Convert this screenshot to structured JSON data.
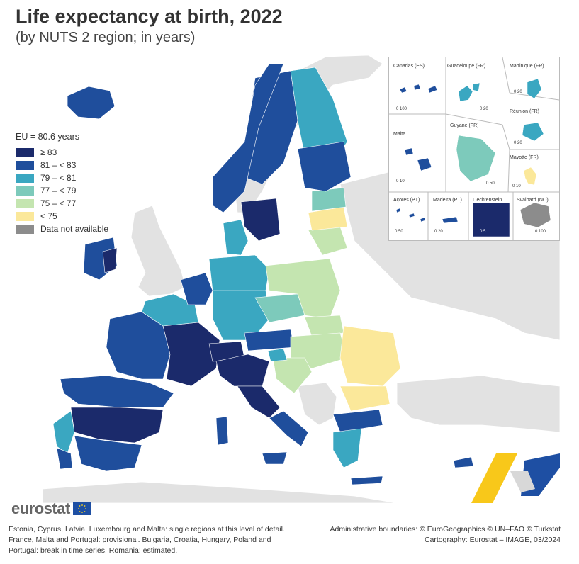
{
  "title": "Life expectancy at birth, 2022",
  "subtitle": "(by NUTS 2 region; in years)",
  "legend": {
    "title": "EU = 80.6 years",
    "items": [
      {
        "label": "≥ 83",
        "color": "#1b2a6b"
      },
      {
        "label": "81 – < 83",
        "color": "#1f4e9c"
      },
      {
        "label": "79 – < 81",
        "color": "#3aa7c1"
      },
      {
        "label": "77 – < 79",
        "color": "#7dcabb"
      },
      {
        "label": "75 – < 77",
        "color": "#c4e5b0"
      },
      {
        "label": "< 75",
        "color": "#fbe89a"
      },
      {
        "label": "Data not available",
        "color": "#8c8c8c"
      }
    ]
  },
  "insets": {
    "canarias": {
      "label": "Canarias (ES)",
      "scale": "0   100"
    },
    "guadeloupe": {
      "label": "Guadeloupe (FR)",
      "scale": "0  20"
    },
    "martinique": {
      "label": "Martinique (FR)",
      "scale": "0  20"
    },
    "reunion": {
      "label": "Réunion (FR)",
      "scale": "0  20"
    },
    "malta": {
      "label": "Malta",
      "scale": "0   10"
    },
    "guyane": {
      "label": "Guyane (FR)",
      "scale": "0  50"
    },
    "mayotte": {
      "label": "Mayotte (FR)",
      "scale": "0  10"
    },
    "acores": {
      "label": "Açores (PT)",
      "scale": "0   50"
    },
    "madeira": {
      "label": "Madeira (PT)",
      "scale": "0  20"
    },
    "liechtenstein": {
      "label": "Liechtenstein",
      "scale": "0  5"
    },
    "svalbard": {
      "label": "Svalbard (NO)",
      "scale": "0 100"
    }
  },
  "logo": {
    "text": "eurostat"
  },
  "footnote": "Estonia, Cyprus, Latvia, Luxembourg and Malta: single regions at this level of detail. France, Malta and Portugal: provisional. Bulgaria, Croatia, Hungary, Poland and Portugal: break in time series. Romania: estimated.",
  "credits": {
    "line1": "Administrative boundaries: © EuroGeographics © UN–FAO © Turkstat",
    "line2": "Cartography: Eurostat – IMAGE, 03/2024"
  },
  "colors": {
    "sea": "#ffffff",
    "non_eu_land": "#e2e2e2",
    "band_83_plus": "#1b2a6b",
    "band_81_83": "#1f4e9c",
    "band_79_81": "#3aa7c1",
    "band_77_79": "#7dcabb",
    "band_75_77": "#c4e5b0",
    "band_lt75": "#fbe89a",
    "na": "#8c8c8c"
  }
}
